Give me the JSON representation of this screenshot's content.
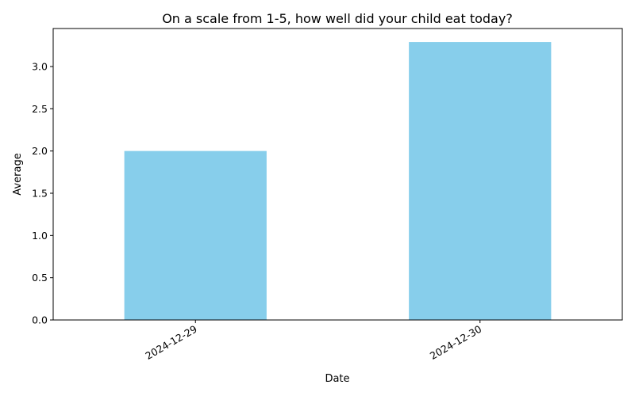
{
  "chart_data": {
    "type": "bar",
    "title": "On a scale from 1-5, how well did your child eat today?",
    "xlabel": "Date",
    "ylabel": "Average",
    "categories": [
      "2024-12-29",
      "2024-12-30"
    ],
    "values": [
      2.0,
      3.29
    ],
    "ylim": [
      0,
      3.45
    ],
    "yticks": [
      0.0,
      0.5,
      1.0,
      1.5,
      2.0,
      2.5,
      3.0
    ],
    "ytick_labels": [
      "0.0",
      "0.5",
      "1.0",
      "1.5",
      "2.0",
      "2.5",
      "3.0"
    ],
    "xtick_rotation": 30,
    "grid": false,
    "bar_color": "#87CEEB",
    "axis_color": "#000000"
  }
}
